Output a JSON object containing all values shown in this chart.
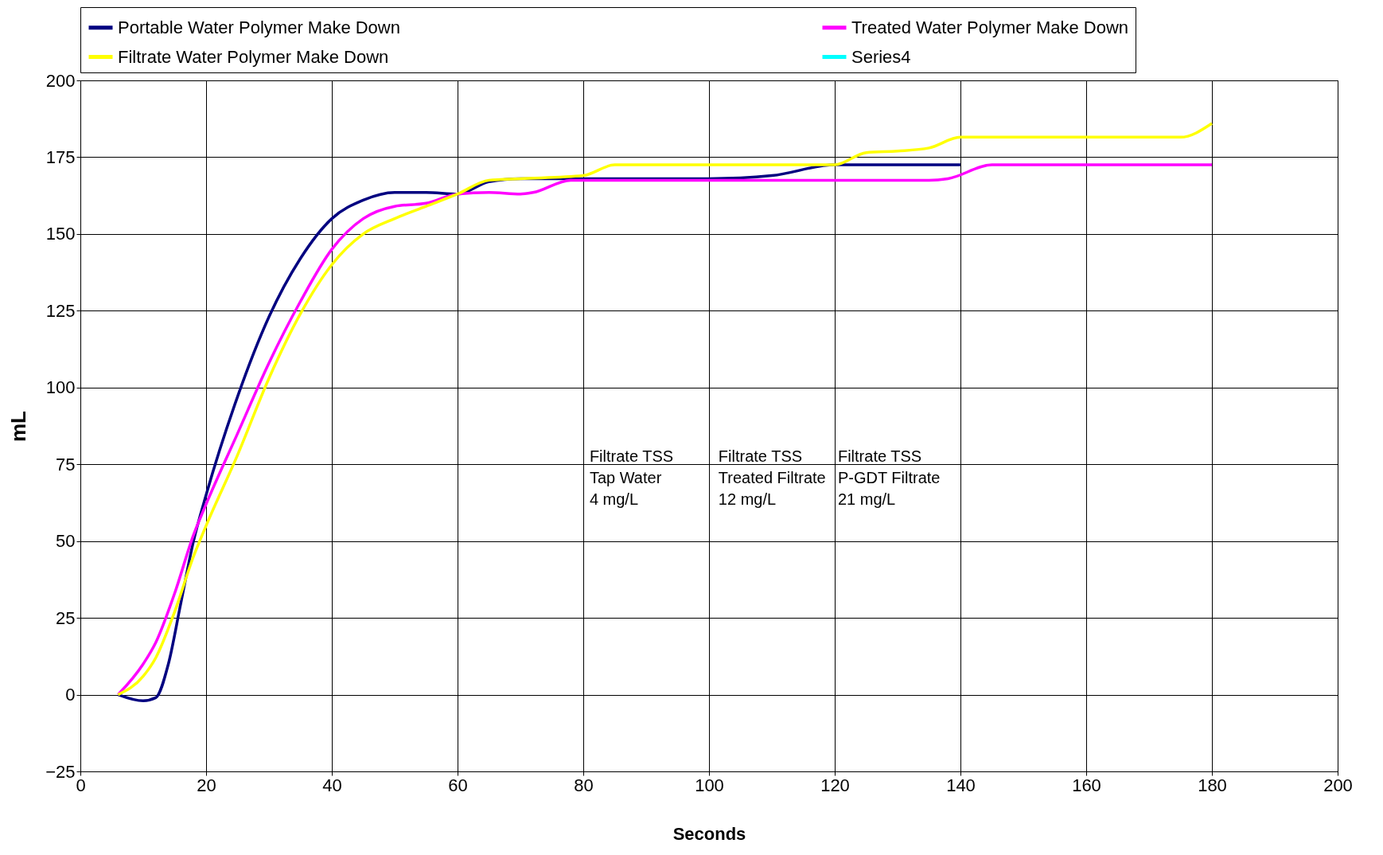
{
  "chart_data": {
    "type": "line",
    "xlabel": "Seconds",
    "ylabel": "mL",
    "xlim": [
      0,
      200
    ],
    "xticks": [
      0,
      20,
      40,
      60,
      80,
      100,
      120,
      140,
      160,
      180,
      200
    ],
    "ylim": [
      -25,
      200
    ],
    "yticks": [
      -25,
      0,
      25,
      50,
      75,
      100,
      125,
      150,
      175,
      200
    ],
    "grid": true,
    "legend": "top",
    "marker": "none",
    "line_style": "solid",
    "series": [
      {
        "name": "Portable Water Polymer Make Down",
        "color": "#000080",
        "x": [
          6,
          10,
          12,
          14,
          16,
          18,
          20,
          25,
          30,
          35,
          40,
          45,
          50,
          55,
          60,
          65,
          70,
          90,
          100,
          110,
          120,
          130,
          140
        ],
        "values": [
          0,
          -2,
          -1,
          10,
          30,
          50,
          65,
          97,
          123,
          142,
          155,
          161,
          163.5,
          163.5,
          163,
          167,
          168,
          168,
          168,
          169,
          172.5,
          172.5,
          172.5
        ]
      },
      {
        "name": "Treated Water Polymer Make Down",
        "color": "#ff00ff",
        "x": [
          6,
          10,
          12,
          15,
          18,
          20,
          25,
          30,
          35,
          40,
          45,
          50,
          55,
          60,
          65,
          70,
          72,
          78,
          90,
          100,
          120,
          135,
          138,
          145,
          150,
          180
        ],
        "values": [
          0,
          10,
          17,
          33,
          52,
          62,
          85,
          108,
          128,
          145,
          155,
          159,
          160,
          163,
          163.5,
          163,
          163.5,
          167.5,
          167.5,
          167.5,
          167.5,
          167.5,
          168,
          172.5,
          172.5,
          172.5
        ]
      },
      {
        "name": "Filtrate Water Polymer Make Down",
        "color": "#ffff00",
        "x": [
          6,
          10,
          12,
          15,
          18,
          20,
          25,
          30,
          35,
          40,
          45,
          50,
          55,
          60,
          65,
          70,
          80,
          85,
          90,
          100,
          110,
          120,
          125,
          130,
          135,
          140,
          145,
          160,
          170,
          175,
          180
        ],
        "values": [
          0,
          6,
          12,
          27,
          45,
          55,
          78,
          103,
          124,
          140,
          150,
          155,
          159,
          163,
          167.5,
          168,
          169,
          172.5,
          172.5,
          172.5,
          172.5,
          172.5,
          176.5,
          177,
          178,
          181.5,
          181.5,
          181.5,
          181.5,
          181.5,
          186
        ]
      },
      {
        "name": "Series4",
        "color": "#00ffff"
      }
    ],
    "annotations": [
      "Filtrate TSS\nTap Water\n4 mg/L",
      "Filtrate TSS\nTreated Filtrate\n12 mg/L",
      "Filtrate TSS\nP-GDT Filtrate\n21 mg/L"
    ]
  }
}
